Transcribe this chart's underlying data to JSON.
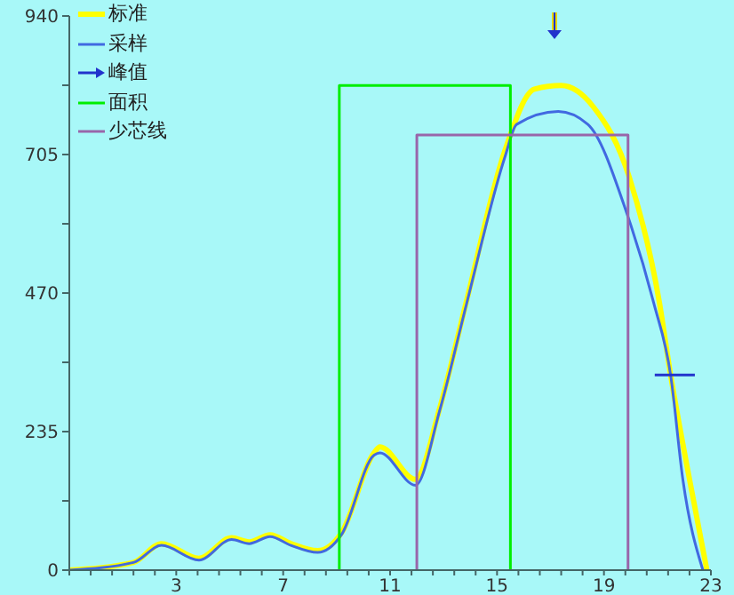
{
  "chart_data": {
    "type": "line",
    "legend": "top left",
    "marker": "none",
    "line_style": "solid",
    "grid": false,
    "xlim": [
      -1,
      23
    ],
    "xticks": [
      {
        "value": -1,
        "label": null
      },
      {
        "value": -0.2,
        "label": null
      },
      {
        "value": 0.6,
        "label": null
      },
      {
        "value": 1.4,
        "label": null
      },
      {
        "value": 2.2,
        "label": null
      },
      3,
      {
        "value": 3.8,
        "label": null
      },
      {
        "value": 4.6,
        "label": null
      },
      {
        "value": 5.4,
        "label": null
      },
      {
        "value": 6.2,
        "label": null
      },
      7,
      {
        "value": 7.8,
        "label": null
      },
      {
        "value": 8.6,
        "label": null
      },
      {
        "value": 9.4,
        "label": null
      },
      {
        "value": 10.2,
        "label": null
      },
      11,
      {
        "value": 11.8,
        "label": null
      },
      {
        "value": 12.6,
        "label": null
      },
      {
        "value": 13.4,
        "label": null
      },
      {
        "value": 14.2,
        "label": null
      },
      15,
      {
        "value": 15.8,
        "label": null
      },
      {
        "value": 16.6,
        "label": null
      },
      {
        "value": 17.4,
        "label": null
      },
      {
        "value": 18.2,
        "label": null
      },
      19,
      {
        "value": 19.8,
        "label": null
      },
      {
        "value": 20.6,
        "label": null
      },
      {
        "value": 21.4,
        "label": null
      },
      {
        "value": 22.2,
        "label": null
      },
      23
    ],
    "ylim": [
      0,
      940
    ],
    "yticks": [
      0,
      {
        "value": 117.5,
        "label": null
      },
      235,
      {
        "value": 352.5,
        "label": null
      },
      470,
      {
        "value": 587.5,
        "label": null
      },
      705,
      {
        "value": 822.5,
        "label": null
      },
      940
    ],
    "series": [
      {
        "name": "标准",
        "color": "#ffff00",
        "x": [
          -1,
          1.4,
          2.45,
          3.85,
          5.07,
          5.73,
          6.51,
          7.29,
          8.29,
          9.18,
          10.4,
          10.62,
          11.95,
          12.85,
          13.85,
          15.29,
          16.4,
          17.4,
          18.6,
          19.95,
          21.07,
          21.5,
          22.2,
          22.85
        ],
        "values": [
          0,
          13,
          45,
          20,
          55,
          48,
          60,
          45,
          33,
          63,
          199,
          209,
          154,
          274,
          455,
          711,
          816,
          822,
          786,
          666,
          455,
          329,
          154,
          0
        ]
      },
      {
        "name": "采样",
        "color": "#4169e1",
        "x": [
          -1,
          1.4,
          2.45,
          3.85,
          5.07,
          5.73,
          6.51,
          7.29,
          8.29,
          9.18,
          10.4,
          10.62,
          11.95,
          12.85,
          13.85,
          15.29,
          15.73,
          17.29,
          18.4,
          19.85,
          20.85,
          21.5,
          21.95,
          22.7
        ],
        "values": [
          0,
          13,
          42,
          17,
          52,
          45,
          57,
          42,
          30,
          60,
          195,
          199,
          144,
          270,
          450,
          700,
          756,
          778,
          756,
          606,
          455,
          329,
          154,
          0
        ]
      },
      {
        "name": "峰值",
        "color": "#2233cc",
        "x": [
          20.9,
          22.4
        ],
        "values": [
          331,
          331
        ]
      },
      {
        "name": "面积",
        "color": "#00ee00",
        "x": [
          9.1,
          9.1,
          15.5,
          15.5
        ],
        "values": [
          0,
          822,
          822,
          0
        ]
      },
      {
        "name": "少芯线",
        "color": "#9966aa",
        "x": [
          12,
          12,
          19.9,
          19.9
        ],
        "values": [
          0,
          738,
          738,
          0
        ]
      }
    ]
  }
}
